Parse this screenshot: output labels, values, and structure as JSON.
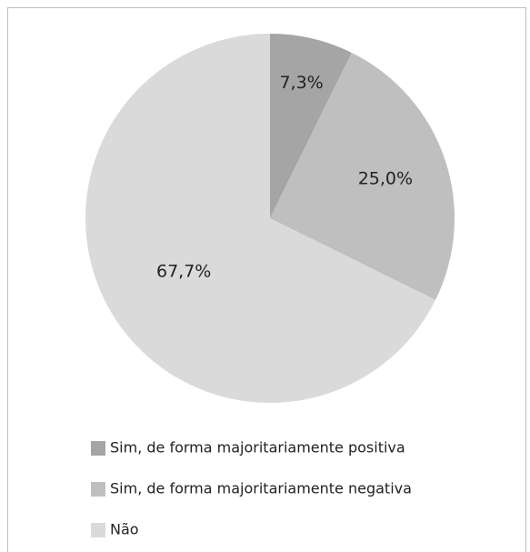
{
  "chart_data": {
    "type": "pie",
    "categories": [
      "Sim, de forma majoritariamente positiva",
      "Sim, de forma majoritariamente negativa",
      "Não"
    ],
    "values": [
      7.3,
      25.0,
      67.7
    ],
    "value_labels": [
      "7,3%",
      "25,0%",
      "67,7%"
    ],
    "colors": [
      "#a5a5a5",
      "#bfbfbf",
      "#dadada"
    ],
    "legend": "bottom"
  }
}
